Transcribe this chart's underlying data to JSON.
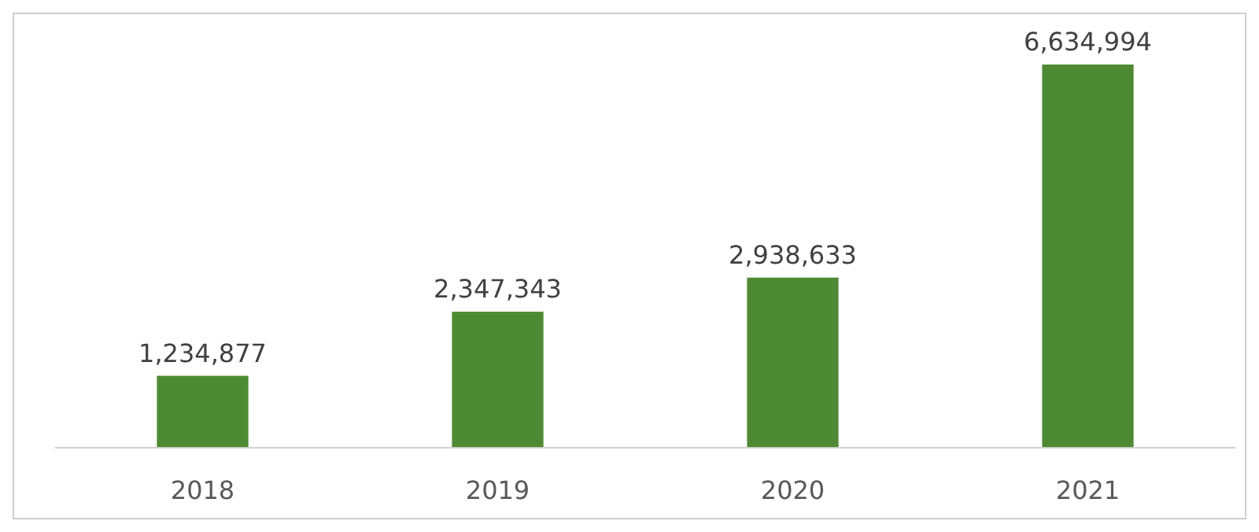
{
  "chart_data": {
    "type": "bar",
    "categories": [
      "2018",
      "2019",
      "2020",
      "2021"
    ],
    "values": [
      1234877,
      2347343,
      2938633,
      6634994
    ],
    "color": "#4e8a33",
    "value_labels": [
      "1,234,877",
      "2,347,343",
      "2,938,633",
      "6,634,994"
    ]
  }
}
